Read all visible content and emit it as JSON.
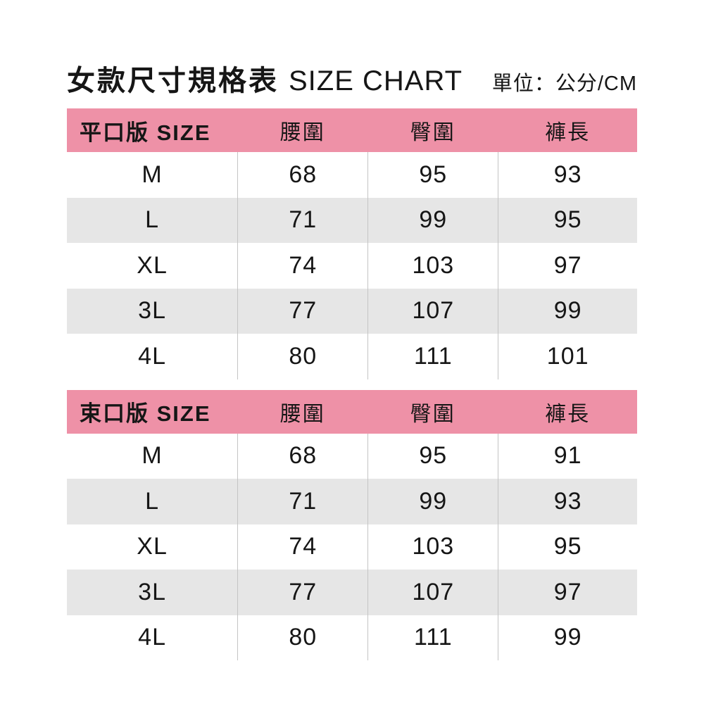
{
  "title": {
    "cjk": "女款尺寸規格表",
    "en": "SIZE CHART",
    "unit": "單位：公分/CM"
  },
  "colors": {
    "header_bg": "#EE91A7",
    "alt_row_bg": "#E6E6E6",
    "divider": "#C4C4C4",
    "text": "#161616"
  },
  "chart_data": [
    {
      "type": "table",
      "title": "平口版 SIZE",
      "columns": [
        "平口版 SIZE",
        "腰圍",
        "臀圍",
        "褲長"
      ],
      "rows": [
        [
          "M",
          68,
          95,
          93
        ],
        [
          "L",
          71,
          99,
          95
        ],
        [
          "XL",
          74,
          103,
          97
        ],
        [
          "3L",
          77,
          107,
          99
        ],
        [
          "4L",
          80,
          111,
          101
        ]
      ]
    },
    {
      "type": "table",
      "title": "束口版 SIZE",
      "columns": [
        "束口版 SIZE",
        "腰圍",
        "臀圍",
        "褲長"
      ],
      "rows": [
        [
          "M",
          68,
          95,
          91
        ],
        [
          "L",
          71,
          99,
          93
        ],
        [
          "XL",
          74,
          103,
          95
        ],
        [
          "3L",
          77,
          107,
          97
        ],
        [
          "4L",
          80,
          111,
          99
        ]
      ]
    }
  ]
}
